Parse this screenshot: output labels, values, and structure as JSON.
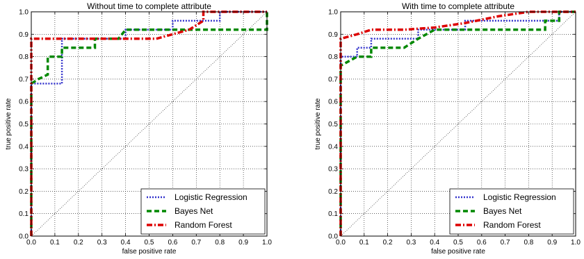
{
  "chart_data": [
    {
      "type": "line",
      "title": "Without time to complete attribute",
      "xlabel": "false positive rate",
      "ylabel": "true positive rate",
      "xlim": [
        0,
        1
      ],
      "ylim": [
        0,
        1
      ],
      "xticks": [
        "0.0",
        "0.1",
        "0.2",
        "0.3",
        "0.4",
        "0.5",
        "0.6",
        "0.7",
        "0.8",
        "0.9",
        "1.0"
      ],
      "yticks": [
        "0.0",
        "0.1",
        "0.2",
        "0.3",
        "0.4",
        "0.5",
        "0.6",
        "0.7",
        "0.8",
        "0.9",
        "1.0"
      ],
      "grid": true,
      "legend_position": "lower-right",
      "diagonal": true,
      "series": [
        {
          "name": "Logistic Regression",
          "color": "#3333cc",
          "style": "dotted",
          "points": [
            [
              0,
              0
            ],
            [
              0,
              0.68
            ],
            [
              0.13,
              0.68
            ],
            [
              0.13,
              0.88
            ],
            [
              0.4,
              0.88
            ],
            [
              0.4,
              0.92
            ],
            [
              0.6,
              0.92
            ],
            [
              0.6,
              0.96
            ],
            [
              0.8,
              0.96
            ],
            [
              0.8,
              1.0
            ],
            [
              1.0,
              1.0
            ]
          ]
        },
        {
          "name": "Bayes Net",
          "color": "#008800",
          "style": "dashed",
          "points": [
            [
              0,
              0
            ],
            [
              0,
              0.68
            ],
            [
              0.03,
              0.7
            ],
            [
              0.07,
              0.72
            ],
            [
              0.07,
              0.8
            ],
            [
              0.13,
              0.8
            ],
            [
              0.13,
              0.84
            ],
            [
              0.27,
              0.84
            ],
            [
              0.27,
              0.88
            ],
            [
              0.37,
              0.88
            ],
            [
              0.4,
              0.92
            ],
            [
              0.53,
              0.92
            ],
            [
              1.0,
              0.92
            ],
            [
              1.0,
              1.0
            ]
          ]
        },
        {
          "name": "Random Forest",
          "color": "#dd0000",
          "style": "dashdot",
          "points": [
            [
              0,
              0
            ],
            [
              0,
              0.88
            ],
            [
              0.53,
              0.88
            ],
            [
              0.6,
              0.9
            ],
            [
              0.67,
              0.92
            ],
            [
              0.73,
              0.96
            ],
            [
              0.73,
              1.0
            ],
            [
              1.0,
              1.0
            ]
          ]
        }
      ]
    },
    {
      "type": "line",
      "title": "With time to complete attribute",
      "xlabel": "false positive rate",
      "ylabel": "true positive rate",
      "xlim": [
        0,
        1
      ],
      "ylim": [
        0,
        1
      ],
      "xticks": [
        "0.0",
        "0.1",
        "0.2",
        "0.3",
        "0.4",
        "0.5",
        "0.6",
        "0.7",
        "0.8",
        "0.9",
        "1.0"
      ],
      "yticks": [
        "0.0",
        "0.1",
        "0.2",
        "0.3",
        "0.4",
        "0.5",
        "0.6",
        "0.7",
        "0.8",
        "0.9",
        "1.0"
      ],
      "grid": true,
      "legend_position": "lower-right",
      "diagonal": true,
      "series": [
        {
          "name": "Logistic Regression",
          "color": "#3333cc",
          "style": "dotted",
          "points": [
            [
              0,
              0
            ],
            [
              0,
              0.8
            ],
            [
              0.07,
              0.8
            ],
            [
              0.07,
              0.84
            ],
            [
              0.13,
              0.84
            ],
            [
              0.13,
              0.88
            ],
            [
              0.33,
              0.88
            ],
            [
              0.33,
              0.92
            ],
            [
              0.53,
              0.92
            ],
            [
              0.53,
              0.96
            ],
            [
              0.93,
              0.96
            ],
            [
              0.93,
              1.0
            ],
            [
              1.0,
              1.0
            ]
          ]
        },
        {
          "name": "Bayes Net",
          "color": "#008800",
          "style": "dashed",
          "points": [
            [
              0,
              0
            ],
            [
              0,
              0.76
            ],
            [
              0.07,
              0.8
            ],
            [
              0.13,
              0.8
            ],
            [
              0.13,
              0.84
            ],
            [
              0.27,
              0.84
            ],
            [
              0.33,
              0.88
            ],
            [
              0.4,
              0.92
            ],
            [
              0.87,
              0.92
            ],
            [
              0.87,
              0.96
            ],
            [
              0.93,
              0.96
            ],
            [
              0.93,
              1.0
            ],
            [
              1.0,
              1.0
            ]
          ]
        },
        {
          "name": "Random Forest",
          "color": "#dd0000",
          "style": "dashdot",
          "points": [
            [
              0,
              0
            ],
            [
              0,
              0.88
            ],
            [
              0.07,
              0.9
            ],
            [
              0.13,
              0.92
            ],
            [
              0.27,
              0.92
            ],
            [
              0.4,
              0.93
            ],
            [
              0.53,
              0.95
            ],
            [
              0.67,
              0.98
            ],
            [
              0.8,
              1.0
            ],
            [
              1.0,
              1.0
            ]
          ]
        }
      ]
    }
  ]
}
